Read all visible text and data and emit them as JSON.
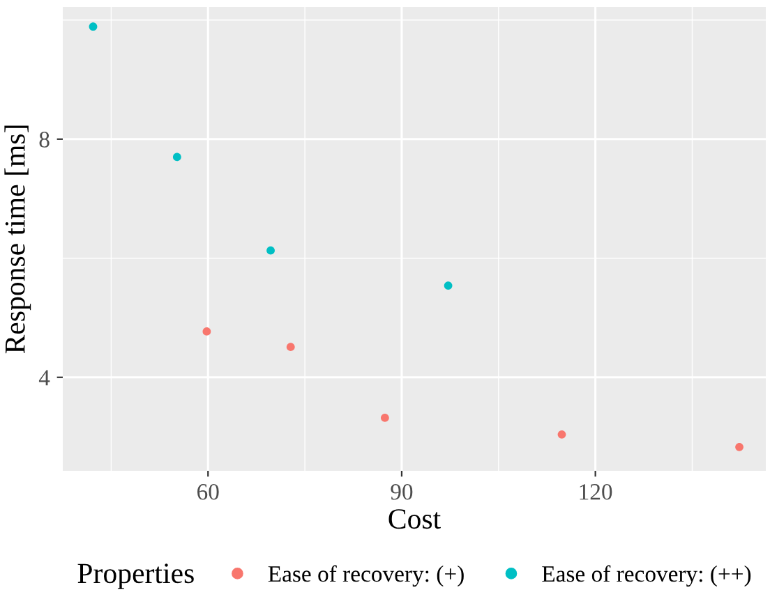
{
  "chart_data": {
    "type": "scatter",
    "xlabel": "Cost",
    "ylabel": "Response time [ms]",
    "legend_title": "Properties",
    "series": [
      {
        "name": "Ease of recovery: (+)",
        "color": "#f8766d",
        "x": [
          59.8,
          72.8,
          87.4,
          114.8,
          142.3
        ],
        "values": [
          4.77,
          4.51,
          3.32,
          3.04,
          2.83
        ]
      },
      {
        "name": "Ease of recovery: (++)",
        "color": "#00bfc4",
        "x": [
          42.2,
          55.2,
          69.7,
          97.2
        ],
        "values": [
          9.89,
          7.7,
          6.13,
          5.54
        ]
      }
    ],
    "xlim": [
      37.5,
      146.4
    ],
    "ylim": [
      2.43,
      10.22
    ],
    "xticks": [
      {
        "value": 45,
        "label": null
      },
      60,
      {
        "value": 75,
        "label": null
      },
      90,
      {
        "value": 105,
        "label": null
      },
      120,
      {
        "value": 135,
        "label": null
      }
    ],
    "yticks": [
      {
        "value": 6,
        "label": null
      },
      4,
      8,
      {
        "value": 10,
        "label": null
      }
    ],
    "grid": true,
    "legend": "bottom",
    "marker": "circle"
  }
}
